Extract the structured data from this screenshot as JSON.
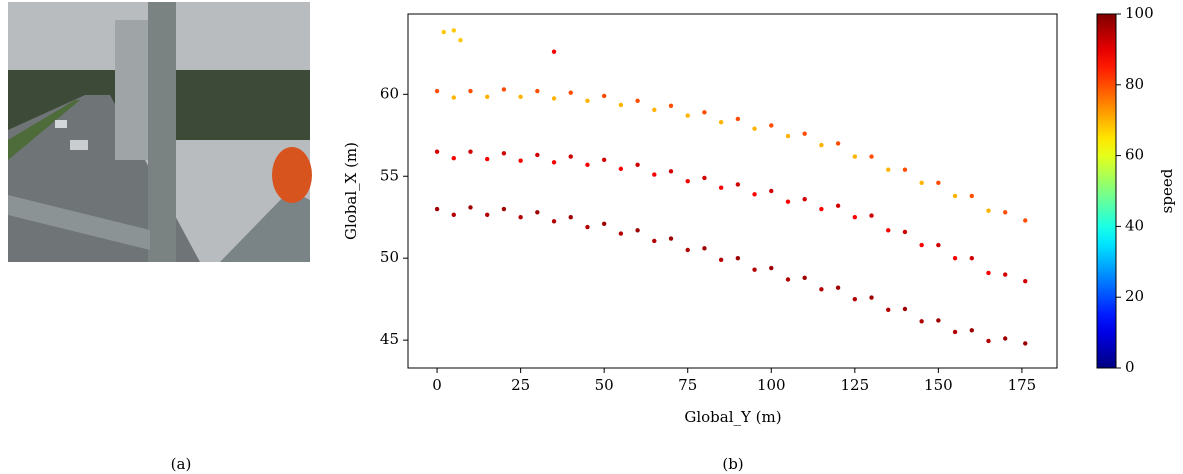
{
  "captions": [
    "(a)",
    "(b)"
  ],
  "chart_data": {
    "type": "scatter",
    "xlabel": "Global_Y (m)",
    "ylabel": "Global_X (m)",
    "xlim": [
      -8.7,
      185.5
    ],
    "ylim": [
      43.3,
      64.9
    ],
    "xticks": [
      0,
      25,
      50,
      75,
      100,
      125,
      150,
      175
    ],
    "yticks": [
      45,
      50,
      55,
      60
    ],
    "grid": false,
    "colorbar": {
      "label": "speed",
      "lim": [
        0,
        100
      ],
      "ticks": [
        0,
        20,
        40,
        60,
        80,
        100
      ],
      "colormap": "jet"
    },
    "x": [
      2,
      5,
      7,
      35,
      0,
      10,
      20,
      30,
      40,
      50,
      60,
      70,
      80,
      90,
      100,
      110,
      120,
      130,
      140,
      150,
      160,
      170,
      176,
      5,
      15,
      25,
      35,
      45,
      55,
      65,
      75,
      85,
      95,
      105,
      115,
      125,
      135,
      145,
      155,
      165,
      0,
      10,
      20,
      30,
      40,
      50,
      60,
      70,
      80,
      90,
      100,
      110,
      120,
      130,
      140,
      150,
      160,
      170,
      176,
      5,
      15,
      25,
      35,
      45,
      55,
      65,
      75,
      85,
      95,
      105,
      115,
      125,
      135,
      145,
      155,
      165,
      0,
      10,
      20,
      30,
      40,
      50,
      60,
      70,
      80,
      90,
      100,
      110,
      120,
      130,
      140,
      150,
      160,
      170,
      176,
      5,
      15,
      25,
      35,
      45,
      55,
      65,
      75,
      85,
      95,
      105,
      115,
      125,
      135,
      145,
      155,
      165
    ],
    "values": [
      63.8,
      63.9,
      63.3,
      62.6,
      60.2,
      60.2,
      60.3,
      60.2,
      60.1,
      59.9,
      59.6,
      59.3,
      58.9,
      58.5,
      58.1,
      57.6,
      57,
      56.2,
      55.4,
      54.6,
      53.8,
      52.8,
      52.3,
      59.8,
      59.85,
      59.85,
      59.75,
      59.6,
      59.35,
      59.05,
      58.7,
      58.3,
      57.9,
      57.45,
      56.9,
      56.2,
      55.4,
      54.6,
      53.8,
      52.9,
      56.5,
      56.5,
      56.4,
      56.3,
      56.2,
      56,
      55.7,
      55.3,
      54.9,
      54.5,
      54.1,
      53.6,
      53.2,
      52.6,
      51.6,
      50.8,
      50,
      49,
      48.6,
      56.1,
      56.05,
      55.95,
      55.85,
      55.7,
      55.45,
      55.1,
      54.7,
      54.3,
      53.9,
      53.45,
      53,
      52.5,
      51.7,
      50.8,
      50,
      49.1,
      53,
      53.1,
      53,
      52.8,
      52.5,
      52.1,
      51.7,
      51.2,
      50.6,
      50,
      49.4,
      48.8,
      48.2,
      47.6,
      46.9,
      46.2,
      45.6,
      45.1,
      44.8,
      52.65,
      52.65,
      52.5,
      52.25,
      51.9,
      51.5,
      51.05,
      50.5,
      49.9,
      49.3,
      48.7,
      48.1,
      47.5,
      46.85,
      46.15,
      45.5,
      44.95
    ],
    "color_values": [
      68,
      68,
      68,
      88,
      80,
      80,
      80,
      80,
      80,
      80,
      80,
      80,
      80,
      80,
      80,
      80,
      80,
      80,
      80,
      80,
      80,
      80,
      80,
      70,
      70,
      70,
      70,
      70,
      70,
      70,
      70,
      70,
      70,
      70,
      70,
      70,
      70,
      70,
      70,
      70,
      92,
      92,
      92,
      92,
      92,
      92,
      92,
      92,
      92,
      92,
      92,
      92,
      92,
      92,
      92,
      92,
      92,
      92,
      92,
      88,
      88,
      88,
      88,
      88,
      88,
      88,
      88,
      88,
      88,
      88,
      88,
      88,
      88,
      88,
      88,
      88,
      97,
      97,
      97,
      97,
      97,
      97,
      97,
      97,
      97,
      97,
      97,
      97,
      97,
      97,
      97,
      97,
      97,
      97,
      97,
      95,
      95,
      95,
      95,
      95,
      95,
      95,
      95,
      95,
      95,
      95,
      95,
      95,
      95,
      95,
      95,
      95
    ]
  }
}
